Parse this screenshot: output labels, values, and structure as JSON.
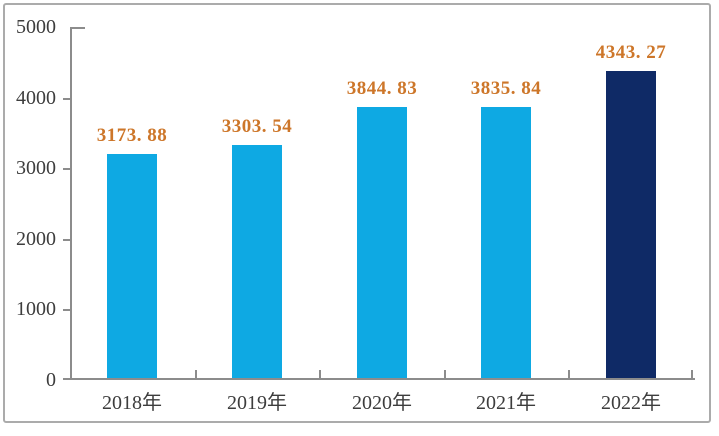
{
  "chart_data": {
    "type": "bar",
    "categories": [
      "2018年",
      "2019年",
      "2020年",
      "2021年",
      "2022年"
    ],
    "values": [
      3173.88,
      3303.54,
      3844.83,
      3835.84,
      4343.27
    ],
    "value_labels": [
      "3173. 88",
      "3303. 54",
      "3844. 83",
      "3835. 84",
      "4343. 27"
    ],
    "title": "",
    "xlabel": "",
    "ylabel": "",
    "ylim": [
      0,
      5000
    ],
    "yticks": [
      0,
      1000,
      2000,
      3000,
      4000,
      5000
    ],
    "ytick_labels": [
      "0",
      "1000",
      "2000",
      "3000",
      "4000",
      "5000"
    ],
    "grid": false,
    "legend": "none",
    "bar_colors": [
      "#0ea9e3",
      "#0ea9e3",
      "#0ea9e3",
      "#0ea9e3",
      "#0f2a66"
    ],
    "value_label_color": "#cd7629",
    "axis_text_color": "#3d3d3d",
    "axis_line_color": "#8c8c8c",
    "frame_border_color": "#ababab",
    "background_color": "#ffffff"
  }
}
